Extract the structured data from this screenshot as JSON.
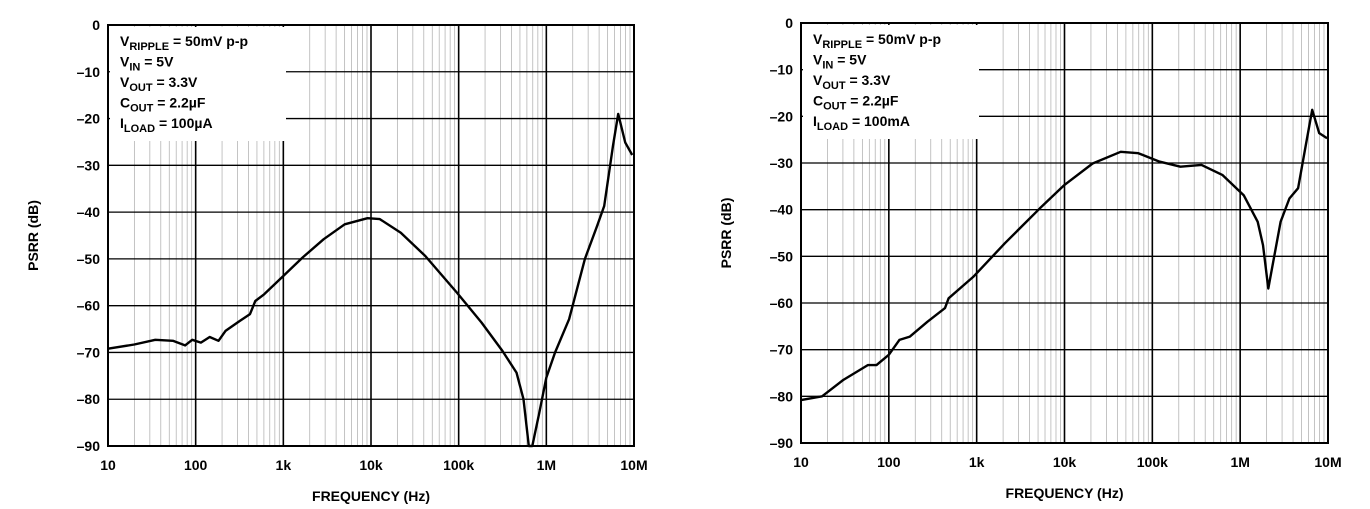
{
  "chart_data": [
    {
      "type": "line",
      "title": "",
      "xlabel": "FREQUENCY (Hz)",
      "ylabel": "PSRR (dB)",
      "xscale": "log",
      "xlim": [
        10,
        10000000
      ],
      "ylim": [
        -90,
        0
      ],
      "grid": true,
      "x_tick_labels": [
        "10",
        "100",
        "1k",
        "10k",
        "100k",
        "1M",
        "10M"
      ],
      "y_ticks": [
        0,
        -10,
        -20,
        -30,
        -40,
        -50,
        -60,
        -70,
        -80,
        -90
      ],
      "y_tick_labels": [
        "0",
        "–10",
        "–20",
        "–30",
        "–40",
        "–50",
        "–60",
        "–70",
        "–80",
        "–90"
      ],
      "legend_placement": "top-left",
      "annotations": [
        {
          "main": "V",
          "sub": "RIPPLE",
          "rest": " = 50mV p-p"
        },
        {
          "main": "V",
          "sub": "IN",
          "rest": " = 5V"
        },
        {
          "main": "V",
          "sub": "OUT",
          "rest": " = 3.3V"
        },
        {
          "main": "C",
          "sub": "OUT",
          "rest": " = 2.2µF"
        },
        {
          "main": "I",
          "sub": "LOAD",
          "rest": " = 100µA"
        }
      ],
      "series": [
        {
          "name": "PSRR",
          "x_log10_hz": [
            1,
            1.3,
            1.54,
            1.74,
            1.88,
            1.96,
            2.06,
            2.16,
            2.26,
            2.34,
            2.5,
            2.62,
            2.68,
            2.78,
            2.98,
            3.22,
            3.46,
            3.7,
            3.96,
            4.1,
            4.34,
            4.62,
            4.98,
            5.26,
            5.5,
            5.66,
            5.74,
            5.8,
            5.84,
            5.92,
            6.0,
            6.1,
            6.26,
            6.44,
            6.58,
            6.66,
            6.76,
            6.82,
            6.9,
            6.98
          ],
          "y_db": [
            -69.2,
            -68.3,
            -67.3,
            -67.5,
            -68.5,
            -67.3,
            -67.9,
            -66.7,
            -67.5,
            -65.4,
            -63.3,
            -61.8,
            -59,
            -57.6,
            -54,
            -49.7,
            -45.8,
            -42.6,
            -41.3,
            -41.5,
            -44.4,
            -49.4,
            -57.2,
            -63.6,
            -69.7,
            -74.3,
            -80,
            -90,
            -90,
            -82.9,
            -75.4,
            -70,
            -62.9,
            -50,
            -42.9,
            -38.7,
            -25.8,
            -19,
            -25.1,
            -27.8
          ]
        }
      ]
    },
    {
      "type": "line",
      "title": "",
      "xlabel": "FREQUENCY (Hz)",
      "ylabel": "PSRR (dB)",
      "xscale": "log",
      "xlim": [
        10,
        10000000
      ],
      "ylim": [
        -90,
        0
      ],
      "grid": true,
      "x_tick_labels": [
        "10",
        "100",
        "1k",
        "10k",
        "100k",
        "1M",
        "10M"
      ],
      "y_ticks": [
        0,
        -10,
        -20,
        -30,
        -40,
        -50,
        -60,
        -70,
        -80,
        -90
      ],
      "y_tick_labels": [
        "0",
        "–10",
        "–20",
        "–30",
        "–40",
        "–50",
        "–60",
        "–70",
        "–80",
        "–90"
      ],
      "legend_placement": "top-left",
      "annotations": [
        {
          "main": "V",
          "sub": "RIPPLE",
          "rest": " = 50mV p-p"
        },
        {
          "main": "V",
          "sub": "IN",
          "rest": " = 5V"
        },
        {
          "main": "V",
          "sub": "OUT",
          "rest": " = 3.3V"
        },
        {
          "main": "C",
          "sub": "OUT",
          "rest": " = 2.2µF"
        },
        {
          "main": "I",
          "sub": "LOAD",
          "rest": " = 100mA"
        }
      ],
      "series": [
        {
          "name": "PSRR",
          "x_log10_hz": [
            1,
            1.24,
            1.48,
            1.76,
            1.86,
            2.0,
            2.12,
            2.24,
            2.44,
            2.64,
            2.68,
            2.96,
            3.32,
            3.72,
            4.0,
            4.32,
            4.64,
            4.84,
            5.08,
            5.32,
            5.56,
            5.8,
            6.04,
            6.2,
            6.26,
            6.32,
            6.46,
            6.56,
            6.66,
            6.74,
            6.82,
            6.9,
            6.99
          ],
          "y_db": [
            -80.8,
            -80,
            -76.5,
            -73.3,
            -73.3,
            -71.1,
            -67.9,
            -67.2,
            -64,
            -61.1,
            -59,
            -54.4,
            -47.2,
            -39.7,
            -34.7,
            -30.1,
            -27.6,
            -27.9,
            -29.7,
            -30.8,
            -30.4,
            -32.6,
            -36.9,
            -42.6,
            -47.6,
            -56.9,
            -42.6,
            -37.6,
            -35.4,
            -26.9,
            -18.6,
            -23.6,
            -24.7
          ]
        }
      ]
    }
  ]
}
